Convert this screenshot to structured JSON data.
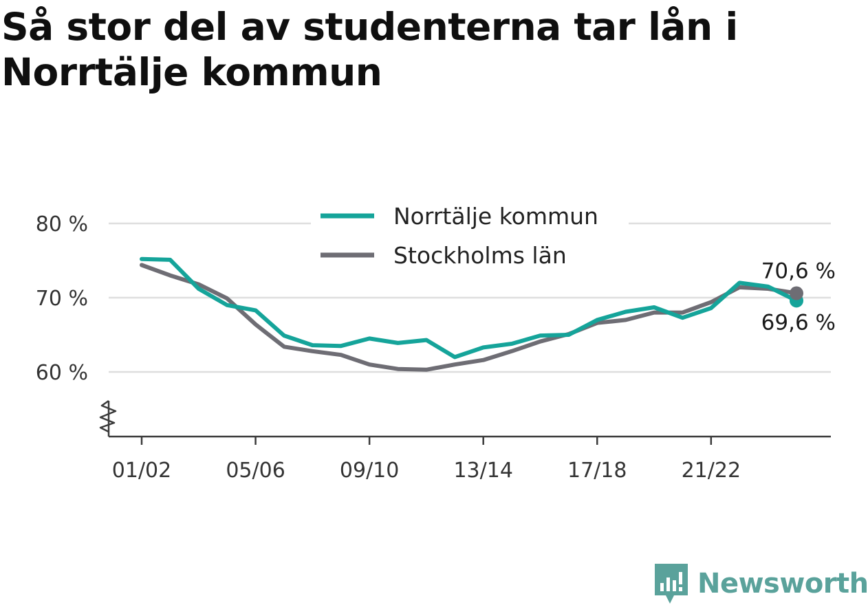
{
  "title": "Så stor del av studenterna tar lån i Norrtälje kommun",
  "brand": {
    "name": "Newsworthy",
    "icon": "newsworthy-logo-icon",
    "color": "#5aa29b"
  },
  "chart_data": {
    "type": "line",
    "x": [
      "01/02",
      "02/03",
      "03/04",
      "04/05",
      "05/06",
      "06/07",
      "07/08",
      "08/09",
      "09/10",
      "10/11",
      "11/12",
      "12/13",
      "13/14",
      "14/15",
      "15/16",
      "16/17",
      "17/18",
      "18/19",
      "19/20",
      "20/21",
      "21/22",
      "22/23",
      "23/24",
      "24/25"
    ],
    "x_tick_labels": [
      "01/02",
      "05/06",
      "09/10",
      "13/14",
      "17/18",
      "21/22"
    ],
    "y_tick_labels": [
      "80 %",
      "70 %",
      "60 %"
    ],
    "y_ticks": [
      80,
      70,
      60
    ],
    "ylim": [
      51.5,
      81
    ],
    "axis_break": true,
    "grid": true,
    "legend_position": "top-center",
    "series": [
      {
        "name": "Norrtälje kommun",
        "color": "#15a49a",
        "values": [
          75.2,
          75.1,
          71.2,
          69.0,
          68.3,
          64.9,
          63.6,
          63.5,
          64.5,
          63.9,
          64.3,
          62.0,
          63.3,
          63.8,
          64.9,
          65.0,
          67.0,
          68.1,
          68.7,
          67.3,
          68.6,
          72.0,
          71.5,
          69.6
        ],
        "end_label": "69,6 %"
      },
      {
        "name": "Stockholms län",
        "color": "#6e6d74",
        "values": [
          74.4,
          73.0,
          71.8,
          69.9,
          66.4,
          63.4,
          62.8,
          62.3,
          61.0,
          60.4,
          60.3,
          61.0,
          61.6,
          62.8,
          64.1,
          65.1,
          66.6,
          67.0,
          68.0,
          68.0,
          69.4,
          71.4,
          71.2,
          70.6
        ],
        "end_label": "70,6 %"
      }
    ]
  }
}
